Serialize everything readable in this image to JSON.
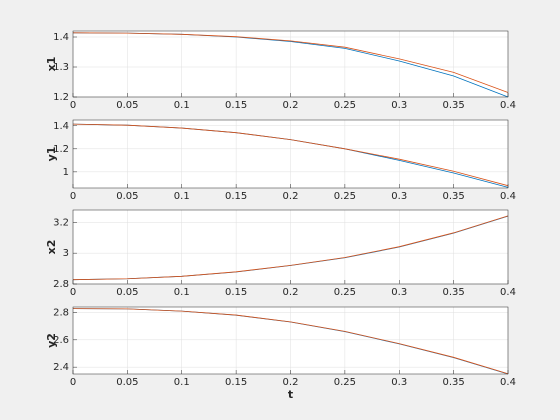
{
  "chart_data": [
    {
      "type": "line",
      "ylabel": "x1",
      "grid": true,
      "x": [
        0,
        0.05,
        0.1,
        0.15,
        0.2,
        0.25,
        0.3,
        0.35,
        0.4
      ],
      "series": [
        {
          "color": "#0072bd",
          "values": [
            1.414,
            1.413,
            1.409,
            1.4,
            1.385,
            1.362,
            1.32,
            1.27,
            1.2
          ]
        },
        {
          "color": "#d95319",
          "values": [
            1.414,
            1.413,
            1.409,
            1.401,
            1.387,
            1.366,
            1.327,
            1.282,
            1.215
          ]
        }
      ],
      "xlim": [
        0,
        0.4
      ],
      "xticks": [
        0,
        0.05,
        0.1,
        0.15,
        0.2,
        0.25,
        0.3,
        0.35,
        0.4
      ],
      "ylim": [
        1.2,
        1.42
      ],
      "yticks": [
        1.2,
        1.3,
        1.4
      ]
    },
    {
      "type": "line",
      "ylabel": "y1",
      "grid": true,
      "x": [
        0,
        0.05,
        0.1,
        0.15,
        0.2,
        0.25,
        0.3,
        0.35,
        0.4
      ],
      "series": [
        {
          "color": "#0072bd",
          "values": [
            1.414,
            1.405,
            1.38,
            1.34,
            1.28,
            1.2,
            1.1,
            0.99,
            0.865
          ]
        },
        {
          "color": "#d95319",
          "values": [
            1.414,
            1.405,
            1.38,
            1.34,
            1.28,
            1.2,
            1.11,
            1.005,
            0.88
          ]
        }
      ],
      "xlim": [
        0,
        0.4
      ],
      "xticks": [
        0,
        0.05,
        0.1,
        0.15,
        0.2,
        0.25,
        0.3,
        0.35,
        0.4
      ],
      "ylim": [
        0.86,
        1.45
      ],
      "yticks": [
        1,
        1.2,
        1.4
      ]
    },
    {
      "type": "line",
      "ylabel": "x2",
      "grid": true,
      "x": [
        0,
        0.05,
        0.1,
        0.15,
        0.2,
        0.25,
        0.3,
        0.35,
        0.4
      ],
      "series": [
        {
          "color": "#0072bd",
          "values": [
            2.828,
            2.834,
            2.85,
            2.878,
            2.92,
            2.97,
            3.04,
            3.13,
            3.24
          ]
        },
        {
          "color": "#d95319",
          "values": [
            2.828,
            2.834,
            2.85,
            2.879,
            2.921,
            2.972,
            3.042,
            3.132,
            3.242
          ]
        }
      ],
      "xlim": [
        0,
        0.4
      ],
      "xticks": [
        0,
        0.05,
        0.1,
        0.15,
        0.2,
        0.25,
        0.3,
        0.35,
        0.4
      ],
      "ylim": [
        2.8,
        3.28
      ],
      "yticks": [
        2.8,
        3,
        3.2
      ]
    },
    {
      "type": "line",
      "ylabel": "y2",
      "xlabel": "t",
      "grid": true,
      "x": [
        0,
        0.05,
        0.1,
        0.15,
        0.2,
        0.25,
        0.3,
        0.35,
        0.4
      ],
      "series": [
        {
          "color": "#0072bd",
          "values": [
            2.828,
            2.826,
            2.81,
            2.78,
            2.73,
            2.66,
            2.57,
            2.47,
            2.35
          ]
        },
        {
          "color": "#d95319",
          "values": [
            2.828,
            2.826,
            2.81,
            2.781,
            2.731,
            2.662,
            2.572,
            2.472,
            2.352
          ]
        }
      ],
      "xlim": [
        0,
        0.4
      ],
      "xticks": [
        0,
        0.05,
        0.1,
        0.15,
        0.2,
        0.25,
        0.3,
        0.35,
        0.4
      ],
      "ylim": [
        2.35,
        2.84
      ],
      "yticks": [
        2.4,
        2.6,
        2.8
      ]
    }
  ]
}
